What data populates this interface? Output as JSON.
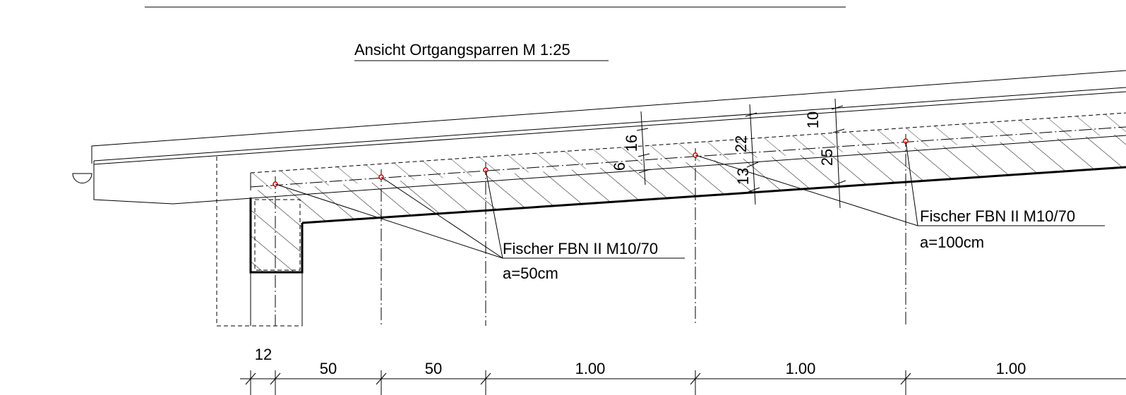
{
  "title": "Ansicht Ortgangsparren M 1:25",
  "vertical_dimensions": [
    "16",
    "6",
    "22",
    "13",
    "10",
    "25"
  ],
  "callouts": [
    {
      "label": "Fischer FBN II M10/70",
      "spacing": "a=50cm"
    },
    {
      "label": "Fischer FBN II M10/70",
      "spacing": "a=100cm"
    }
  ],
  "dimension_chain": [
    "12",
    "50",
    "50",
    "1.00",
    "1.00",
    "1.00"
  ]
}
